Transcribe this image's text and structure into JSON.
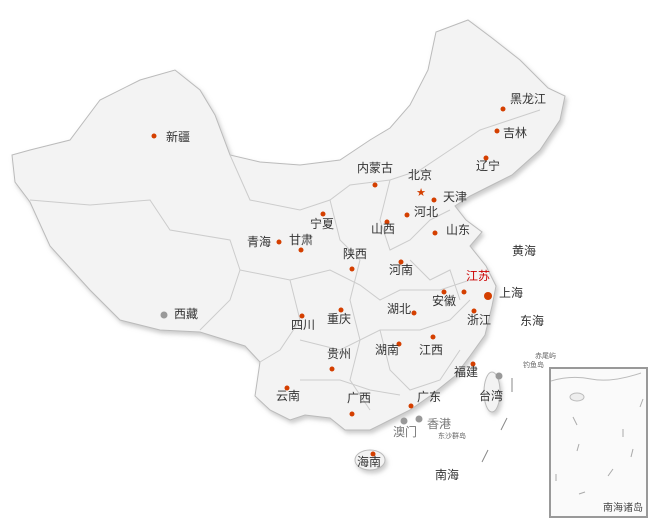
{
  "map": {
    "colors": {
      "land": "#f3f3f3",
      "border": "#bbbbbb",
      "capital_marker": "#d43f00",
      "sar_marker": "#999999",
      "highlight": "#cc0000"
    },
    "provinces": [
      {
        "name": "新疆"
      },
      {
        "name": "西藏"
      },
      {
        "name": "青海"
      },
      {
        "name": "甘肃"
      },
      {
        "name": "宁夏"
      },
      {
        "name": "内蒙古"
      },
      {
        "name": "北京"
      },
      {
        "name": "天津"
      },
      {
        "name": "河北"
      },
      {
        "name": "山西"
      },
      {
        "name": "山东"
      },
      {
        "name": "陕西"
      },
      {
        "name": "河南"
      },
      {
        "name": "江苏",
        "highlighted": true
      },
      {
        "name": "上海"
      },
      {
        "name": "安徽"
      },
      {
        "name": "湖北"
      },
      {
        "name": "四川"
      },
      {
        "name": "重庆"
      },
      {
        "name": "浙江"
      },
      {
        "name": "湖南"
      },
      {
        "name": "江西"
      },
      {
        "name": "贵州"
      },
      {
        "name": "福建"
      },
      {
        "name": "云南"
      },
      {
        "name": "广西"
      },
      {
        "name": "广东"
      },
      {
        "name": "台湾"
      },
      {
        "name": "香港"
      },
      {
        "name": "澳门"
      },
      {
        "name": "海南"
      },
      {
        "name": "黑龙江"
      },
      {
        "name": "吉林"
      },
      {
        "name": "辽宁"
      }
    ],
    "seas": [
      "黄海",
      "东海",
      "南海"
    ],
    "islands": [
      "东沙群岛",
      "赤尾屿",
      "钓鱼岛"
    ],
    "inset_label": "南海诸岛"
  }
}
